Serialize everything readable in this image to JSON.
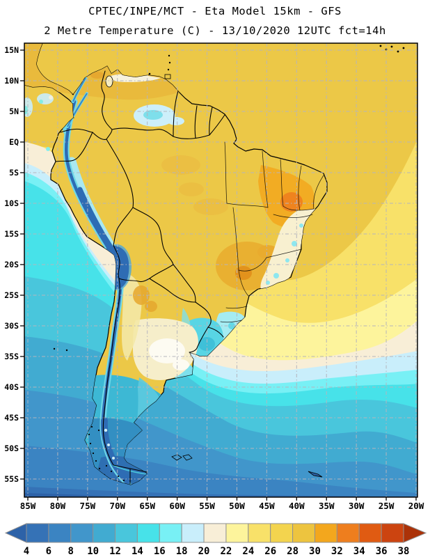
{
  "title": {
    "line1": "CPTEC/INPE/MCT -  Eta Model 15km - GFS",
    "line2": "2 Metre Temperature (C) - 13/10/2020 12UTC fct=14h"
  },
  "axes": {
    "lat_labels": [
      "15N",
      "10N",
      "5N",
      "EQ",
      "5S",
      "10S",
      "15S",
      "20S",
      "25S",
      "30S",
      "35S",
      "40S",
      "45S",
      "50S",
      "55S"
    ],
    "lon_labels": [
      "85W",
      "80W",
      "75W",
      "70W",
      "65W",
      "60W",
      "55W",
      "50W",
      "45W",
      "40W",
      "35W",
      "30W",
      "25W",
      "20W"
    ]
  },
  "colorbar": {
    "values": [
      "4",
      "6",
      "8",
      "10",
      "12",
      "14",
      "16",
      "18",
      "20",
      "22",
      "24",
      "26",
      "28",
      "30",
      "32",
      "34",
      "36",
      "38"
    ],
    "cell_colors": [
      "#3572b6",
      "#3b84c2",
      "#4196cb",
      "#41abd1",
      "#49c6dc",
      "#47e2e9",
      "#78f0f5",
      "#c9eefb",
      "#f8eed7",
      "#fdf49c",
      "#f8e169",
      "#f3d44e",
      "#edc43f",
      "#f3a71d",
      "#ee7e1e",
      "#e05b12",
      "#cc4410"
    ],
    "arrow_left_color": "#2d62a8",
    "arrow_right_color": "#ab3208",
    "cell_border_color": "#909090"
  },
  "palette": {
    "warm_gold": "#ecc847",
    "deep_cold": "#2d62a8",
    "band_4_6": "#3572b6",
    "band_6_8": "#3b84c2",
    "band_8_10": "#4196cb",
    "band_10_12": "#41abd1",
    "band_12_14": "#49c6dc",
    "band_14_16": "#47e2e9",
    "band_16_18": "#78f0f5",
    "band_18_20": "#c9eefb",
    "band_20_22": "#f8eed7",
    "band_22_24": "#fdf49c",
    "band_24_26": "#f8e169",
    "band_28_30": "#edc43f",
    "band_30_32": "#f3a71d",
    "band_32_34": "#ee7e1e",
    "andes_core": "#2e6cb4",
    "andes_fringe": "#6fd8e8",
    "pampa_cream": "#f6eeca",
    "pampa_white": "#fdfbf2",
    "patagonia_teal": "#3db8d4",
    "patagonia_steel": "#338fc2",
    "tierra_fuego_blue": "#2e6fb2",
    "uruguay_cyan": "#58d5e4",
    "grid_color": "#b5b5bd"
  }
}
